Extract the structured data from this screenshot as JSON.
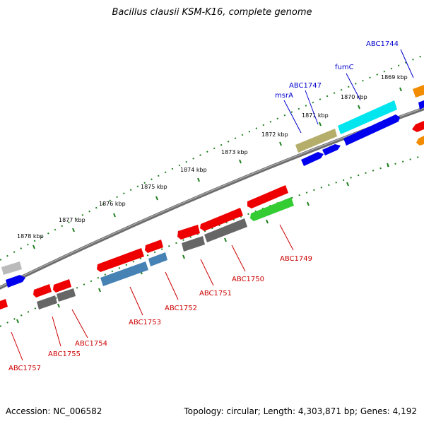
{
  "title": "Bacillus clausii KSM-K16, complete genome",
  "footer": {
    "accession": "Accession: NC_006582",
    "summary": "Topology: circular; Length: 4,303,871 bp; Genes: 4,192"
  },
  "colors": {
    "backbone": "#7f7f7f",
    "ruler_ticks": "#1f7f1f",
    "forward_label": "#0000cc",
    "reverse_label": "#cc0000"
  },
  "ruler": {
    "unit": "kbp",
    "labels": [
      "1869 kbp",
      "1870 kbp",
      "1871 kbp",
      "1872 kbp",
      "1873 kbp",
      "1874 kbp",
      "1875 kbp",
      "1876 kbp",
      "1877 kbp",
      "1878 kbp"
    ]
  },
  "gene_labels": [
    {
      "text": "ABC1744",
      "strand": "forward"
    },
    {
      "text": "fumC",
      "strand": "forward"
    },
    {
      "text": "ABC1747",
      "strand": "forward"
    },
    {
      "text": "msrA",
      "strand": "forward"
    },
    {
      "text": "ABC1749",
      "strand": "reverse"
    },
    {
      "text": "ABC1750",
      "strand": "reverse"
    },
    {
      "text": "ABC1751",
      "strand": "reverse"
    },
    {
      "text": "ABC1752",
      "strand": "reverse"
    },
    {
      "text": "ABC1753",
      "strand": "reverse"
    },
    {
      "text": "ABC1754",
      "strand": "reverse"
    },
    {
      "text": "ABC1755",
      "strand": "reverse"
    },
    {
      "text": "ABC1757",
      "strand": "reverse"
    }
  ],
  "features": [
    {
      "name": "feature-orange",
      "color": "#f28c00"
    },
    {
      "name": "feature-blue",
      "color": "#0000ee"
    },
    {
      "name": "feature-cyan",
      "color": "#00e5ee"
    },
    {
      "name": "feature-olive",
      "color": "#b5ad6a"
    },
    {
      "name": "feature-red",
      "color": "#ee0000"
    },
    {
      "name": "feature-green",
      "color": "#33cc33"
    },
    {
      "name": "feature-gray",
      "color": "#666666"
    },
    {
      "name": "feature-steelblue",
      "color": "#4682b4"
    },
    {
      "name": "feature-lightgray",
      "color": "#bbbbbb"
    }
  ]
}
